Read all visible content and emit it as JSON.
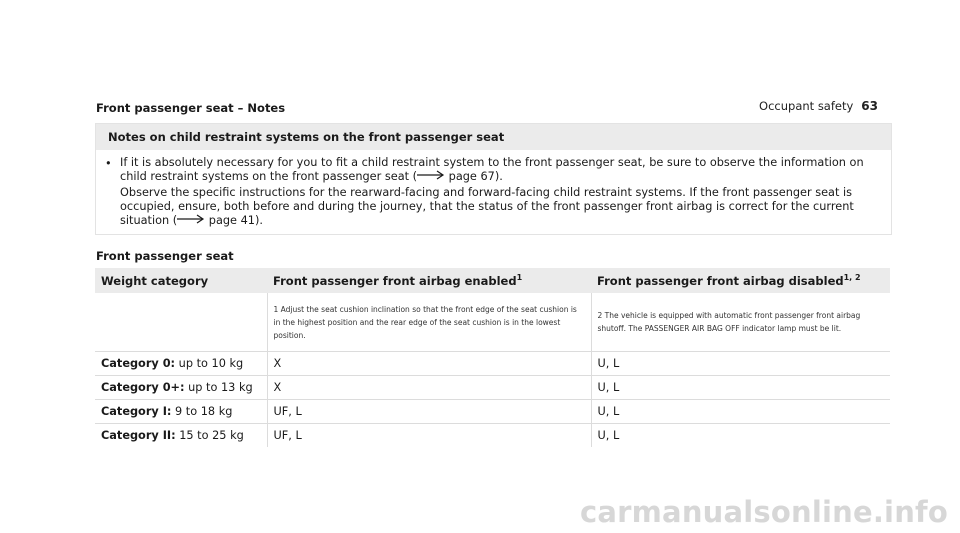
{
  "header": {
    "section": "Occupant safety",
    "page": "63"
  },
  "heading1": "Front passenger seat – Notes",
  "notes": {
    "title": "Notes on child restraint systems on the front passenger seat",
    "bullet": "•",
    "para1_a": "If it is absolutely necessary for you to fit a child restraint system to the front passenger seat, be sure to observe the information on child restraint systems on the front passenger seat (",
    "para1_ref": "page 67).",
    "para2_a": "Observe the specific instructions for the rearward-facing and forward-facing child restraint systems. If the front passenger seat is occupied, ensure, both before and during the journey, that the status of the front passenger front airbag is correct for the current situation (",
    "para2_ref": "page 41)."
  },
  "heading2": "Front passenger seat",
  "table": {
    "col1": "Weight category",
    "col2": "Front passenger front airbag enabled",
    "col2_sup": "1",
    "col3": "Front passenger front airbag disabled",
    "col3_sup": "1, 2",
    "footnote1": "1 Adjust the seat cushion inclination so that the front edge of the seat cushion is in the highest position and the rear edge of the seat cushion is in the lowest position.",
    "footnote2": "2 The vehicle is equipped with automatic front passenger front airbag shutoff. The PASSENGER AIR BAG OFF indicator lamp must be lit.",
    "rows": [
      {
        "cat": "Category 0:",
        "weight": "up to 10 kg",
        "enabled": "X",
        "disabled": "U, L"
      },
      {
        "cat": "Category 0+:",
        "weight": "up to 13 kg",
        "enabled": "X",
        "disabled": "U, L"
      },
      {
        "cat": "Category I:",
        "weight": "9 to 18 kg",
        "enabled": "UF, L",
        "disabled": "U, L"
      },
      {
        "cat": "Category II:",
        "weight": "15 to 25 kg",
        "enabled": "UF, L",
        "disabled": "U, L"
      }
    ]
  },
  "watermark": "carmanualsonline.info"
}
